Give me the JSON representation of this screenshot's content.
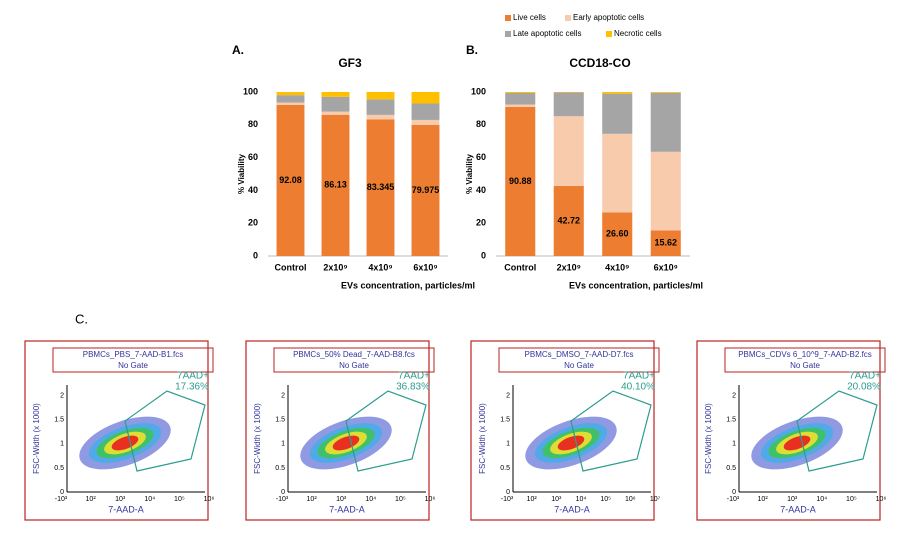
{
  "chart_data": [
    {
      "type": "stacked_bar",
      "panel_label": "A.",
      "title": "GF3",
      "ylabel": "% Viability",
      "xlabel": "EVs concentration, particles/ml",
      "categories": [
        "Control",
        "2x10⁹",
        "4x10⁹",
        "6x10⁹"
      ],
      "ylim": [
        0,
        100
      ],
      "yticks": [
        0,
        20,
        40,
        60,
        80,
        100
      ],
      "series": [
        {
          "color": "#ed7d31",
          "values": [
            92.08,
            86.13,
            83.345,
            79.975
          ]
        },
        {
          "color": "#f8cbad",
          "values": [
            1.5,
            1.9,
            2.7,
            3
          ]
        },
        {
          "color": "#a5a5a5",
          "values": [
            4.5,
            9,
            9.5,
            10
          ]
        },
        {
          "color": "#ffc000",
          "values": [
            1.92,
            2.97,
            4.455,
            7.025
          ]
        }
      ]
    },
    {
      "type": "stacked_bar",
      "panel_label": "B.",
      "title": "CCD18-CO",
      "ylabel": "% Viability",
      "xlabel": "EVs concentration, particles/ml",
      "categories": [
        "Control",
        "2x10⁹",
        "4x10⁹",
        "6x10⁹"
      ],
      "ylim": [
        0,
        100
      ],
      "yticks": [
        0,
        20,
        40,
        60,
        80,
        100
      ],
      "series": [
        {
          "name": "Live cells",
          "color": "#ed7d31",
          "values": [
            90.88,
            42.72,
            26.6,
            15.62
          ],
          "value_labels": [
            "90.88",
            "42.72",
            "26.60",
            "15.62"
          ]
        },
        {
          "name": "Early apoptotic cells",
          "color": "#f8cbad",
          "values": [
            1.5,
            42.5,
            47.9,
            47.9
          ]
        },
        {
          "name": "Late apoptotic cells",
          "color": "#a5a5a5",
          "values": [
            7,
            14.5,
            24.5,
            36
          ]
        },
        {
          "name": "Necrotic cells",
          "color": "#ffc000",
          "values": [
            0.62,
            0.28,
            1,
            0.48
          ]
        }
      ]
    }
  ],
  "section_label": "C.",
  "flow_plots": [
    {
      "file": "PBMCs_PBS_7-AAD-B1.fcs",
      "gate": "No Gate",
      "gate_label": "7AAD+",
      "percent": "17.36%",
      "ylabel": "FSC-Width (x 1000)",
      "xlabel": "7-AAD-A",
      "yticks": [
        "0",
        "0.5",
        "1",
        "1.5",
        "2"
      ],
      "xticks": [
        "-10³",
        "10²",
        "10³",
        "10⁴",
        "10⁵",
        "10⁶"
      ]
    },
    {
      "file": "PBMCs_50% Dead_7-AAD-B8.fcs",
      "gate": "No Gate",
      "gate_label": "7AAD+",
      "percent": "36.83%",
      "ylabel": "FSC-Width (x 1000)",
      "xlabel": "7-AAD-A",
      "yticks": [
        "0",
        "0.5",
        "1",
        "1.5",
        "2"
      ],
      "xticks": [
        "-10³",
        "10²",
        "10³",
        "10⁴",
        "10⁵",
        "10⁶"
      ]
    },
    {
      "file": "PBMCs_DMSO_7-AAD-D7.fcs",
      "gate": "No Gate",
      "gate_label": "7AAD+",
      "percent": "40.10%",
      "ylabel": "FSC-Width (x 1000)",
      "xlabel": "7-AAD-A",
      "yticks": [
        "0",
        "0.5",
        "1",
        "1.5",
        "2"
      ],
      "xticks": [
        "-10³",
        "10²",
        "10³",
        "10⁴",
        "10⁵",
        "10⁶",
        "10⁷"
      ]
    },
    {
      "file": "PBMCs_CDVs 6_10^9_7-AAD-B2.fcs",
      "gate": "No Gate",
      "gate_label": "7AAD+",
      "percent": "20.08%",
      "ylabel": "FSC-Width (x 1000)",
      "xlabel": "7-AAD-A",
      "yticks": [
        "0",
        "0.5",
        "1",
        "1.5",
        "2"
      ],
      "xticks": [
        "-10³",
        "10²",
        "10³",
        "10⁴",
        "10⁵",
        "10⁶"
      ]
    }
  ]
}
